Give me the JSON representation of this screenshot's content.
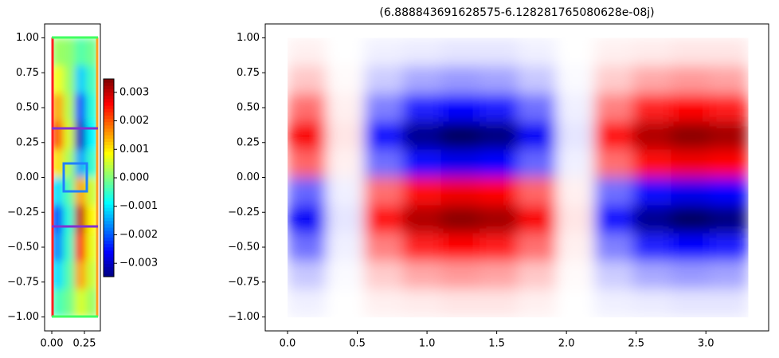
{
  "chart_data": [
    {
      "type": "heatmap",
      "colormap": "jet",
      "x": [
        0.044,
        0.131,
        0.219,
        0.306
      ],
      "y": [
        0.9,
        0.7,
        0.5,
        0.3,
        0.1,
        -0.1,
        -0.3,
        -0.5,
        -0.7,
        -0.9
      ],
      "z": [
        [
          0.0002,
          0.0001,
          -0.0003,
          -0.0001
        ],
        [
          0.0008,
          0.0002,
          -0.0012,
          -0.0004
        ],
        [
          0.0015,
          0.0004,
          -0.0021,
          -0.0006
        ],
        [
          0.0021,
          0.0006,
          -0.003,
          -0.0009
        ],
        [
          0.0011,
          0.0003,
          -0.0015,
          -0.0005
        ],
        [
          -0.0011,
          -0.0003,
          0.0015,
          0.0005
        ],
        [
          -0.0021,
          -0.0006,
          0.003,
          0.0009
        ],
        [
          -0.0017,
          -0.0005,
          0.0024,
          0.0007
        ],
        [
          -0.0011,
          -0.0003,
          0.0015,
          0.0005
        ],
        [
          -0.0004,
          -0.0001,
          0.0006,
          0.0002
        ]
      ],
      "xlim": [
        -0.055,
        0.372
      ],
      "ylim": [
        -1.1,
        1.1
      ],
      "xticks": [
        {
          "value": 0,
          "label": "0.00"
        },
        {
          "value": 0.25,
          "label": "0.25"
        }
      ],
      "yticks": [
        {
          "value": 1,
          "label": "1.00"
        },
        {
          "value": 0.75,
          "label": "0.75"
        },
        {
          "value": 0.5,
          "label": "0.50"
        },
        {
          "value": 0.25,
          "label": "0.25"
        },
        {
          "value": 0,
          "label": "0.00"
        },
        {
          "value": -0.25,
          "label": "−0.25"
        },
        {
          "value": -0.5,
          "label": "−0.50"
        },
        {
          "value": -0.75,
          "label": "−0.75"
        },
        {
          "value": -1,
          "label": "−1.00"
        }
      ],
      "clim": [
        -0.00347,
        0.00347
      ],
      "colorbar_ticks": [
        {
          "value": 0.003,
          "label": "0.003"
        },
        {
          "value": 0.002,
          "label": "0.002"
        },
        {
          "value": 0.001,
          "label": "0.001"
        },
        {
          "value": 0,
          "label": "0.000"
        },
        {
          "value": -0.001,
          "label": "−0.001"
        },
        {
          "value": -0.002,
          "label": "−0.002"
        },
        {
          "value": -0.003,
          "label": "−0.003"
        }
      ]
    },
    {
      "type": "heatmap",
      "colormap": "seismic",
      "title": "(6.888843691628575-6.128281765080628e-08j)",
      "x": [
        0.1375,
        0.4125,
        0.6875,
        0.9625,
        1.2375,
        1.5125,
        1.7875,
        2.0625,
        2.3375,
        2.6125,
        2.8875,
        3.1625
      ],
      "y": [
        0.9,
        0.7,
        0.5,
        0.3,
        0.1,
        -0.1,
        -0.3,
        -0.5,
        -0.7,
        -0.9
      ],
      "z": [
        [
          0.03,
          0,
          -0.03,
          -0.04,
          -0.05,
          -0.05,
          -0.03,
          0,
          0.03,
          0.04,
          0.05,
          0.05
        ],
        [
          0.11,
          0.01,
          -0.1,
          -0.17,
          -0.2,
          -0.18,
          -0.11,
          -0.01,
          0.1,
          0.17,
          0.2,
          0.18
        ],
        [
          0.28,
          0.03,
          -0.25,
          -0.43,
          -0.5,
          -0.45,
          -0.28,
          -0.03,
          0.25,
          0.43,
          0.5,
          0.45
        ],
        [
          0.52,
          0.05,
          -0.48,
          -0.81,
          -0.95,
          -0.86,
          -0.52,
          -0.05,
          0.48,
          0.81,
          0.95,
          0.86
        ],
        [
          0.3,
          0.03,
          -0.28,
          -0.47,
          -0.55,
          -0.5,
          -0.3,
          -0.03,
          0.28,
          0.47,
          0.55,
          0.5
        ],
        [
          -0.3,
          -0.03,
          0.28,
          0.47,
          0.55,
          0.5,
          0.3,
          0.03,
          -0.28,
          -0.47,
          -0.55,
          -0.5
        ],
        [
          -0.52,
          -0.05,
          0.48,
          0.81,
          0.95,
          0.86,
          0.52,
          0.05,
          -0.48,
          -0.81,
          -0.95,
          -0.86
        ],
        [
          -0.28,
          -0.03,
          0.25,
          0.43,
          0.5,
          0.45,
          0.28,
          0.03,
          -0.25,
          -0.43,
          -0.5,
          -0.45
        ],
        [
          -0.11,
          -0.01,
          0.1,
          0.17,
          0.2,
          0.18,
          0.11,
          0.01,
          -0.1,
          -0.17,
          -0.2,
          -0.18
        ],
        [
          -0.03,
          0,
          0.03,
          0.04,
          0.05,
          0.05,
          0.03,
          0,
          -0.03,
          -0.04,
          -0.05,
          -0.05
        ]
      ],
      "clim": [
        -1,
        1
      ],
      "xlim": [
        -0.16,
        3.45
      ],
      "ylim": [
        -1.1,
        1.1
      ],
      "xticks": [
        {
          "value": 0,
          "label": "0.0"
        },
        {
          "value": 0.5,
          "label": "0.5"
        },
        {
          "value": 1,
          "label": "1.0"
        },
        {
          "value": 1.5,
          "label": "1.5"
        },
        {
          "value": 2,
          "label": "2.0"
        },
        {
          "value": 2.5,
          "label": "2.5"
        },
        {
          "value": 3,
          "label": "3.0"
        }
      ],
      "yticks": [
        {
          "value": 1,
          "label": "1.00"
        },
        {
          "value": 0.75,
          "label": "0.75"
        },
        {
          "value": 0.5,
          "label": "0.50"
        },
        {
          "value": 0.25,
          "label": "0.25"
        },
        {
          "value": 0,
          "label": "0.00"
        },
        {
          "value": -0.25,
          "label": "−0.25"
        },
        {
          "value": -0.5,
          "label": "−0.50"
        },
        {
          "value": -0.75,
          "label": "−0.75"
        },
        {
          "value": -1,
          "label": "−1.00"
        }
      ]
    }
  ]
}
